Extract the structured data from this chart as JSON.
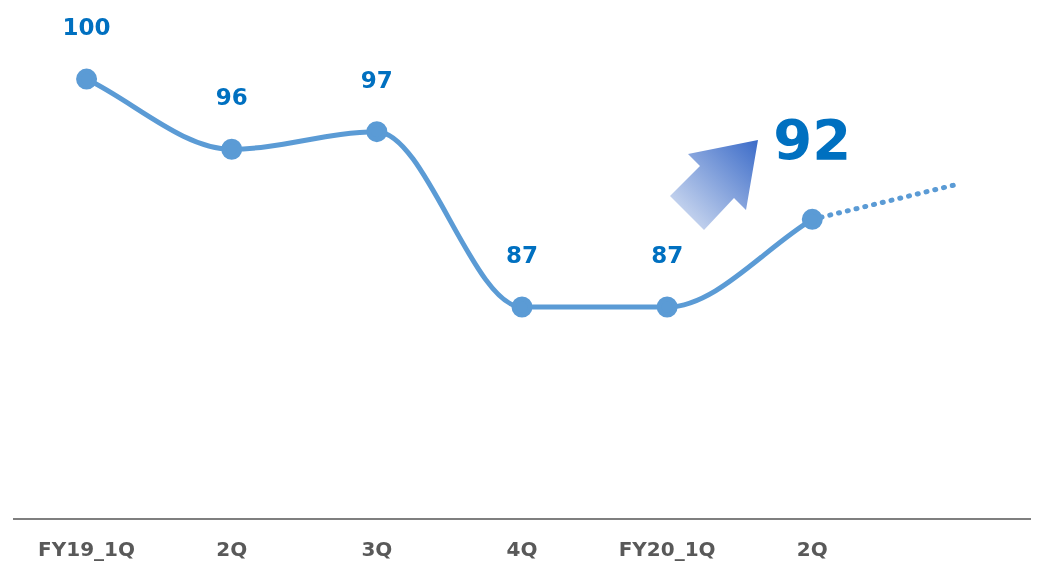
{
  "chart_data": {
    "type": "line",
    "categories": [
      "FY19_1Q",
      "2Q",
      "3Q",
      "4Q",
      "FY20_1Q",
      "2Q",
      null
    ],
    "tick_labels": "x",
    "grid": false,
    "legend": false,
    "series": [
      {
        "color": "#5b9bd5",
        "line_style": "solid",
        "marker": "circle",
        "values": [
          100,
          96,
          97,
          87,
          87,
          92,
          null
        ],
        "value_labels": [
          "100",
          "96",
          "97",
          "87",
          "87",
          "92",
          null
        ]
      },
      {
        "color": "#5b9bd5",
        "line_style": "dotted",
        "values": [
          null,
          null,
          null,
          null,
          null,
          92,
          94
        ]
      }
    ]
  }
}
